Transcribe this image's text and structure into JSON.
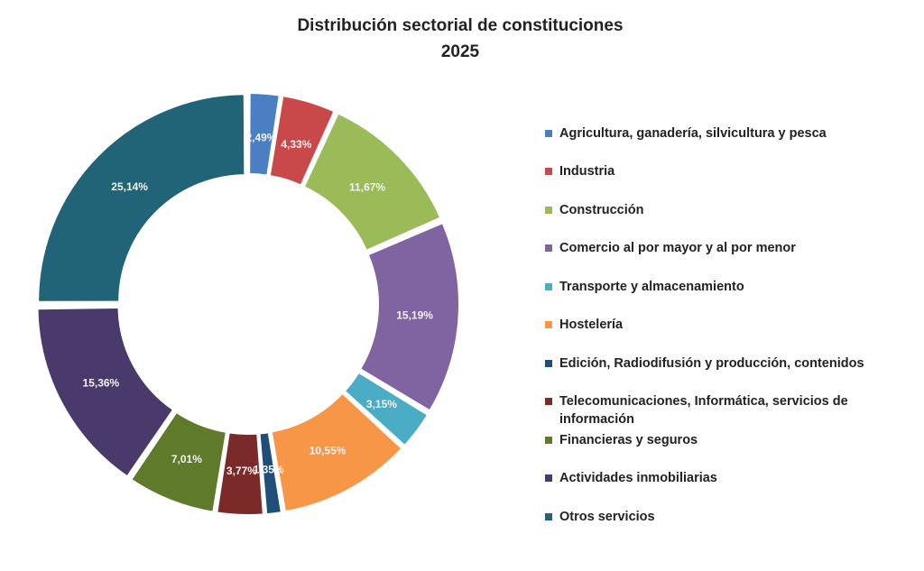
{
  "chart_data": {
    "type": "pie",
    "variant": "donut",
    "title": "Distribución sectorial de constituciones",
    "subtitle": "2025",
    "legend_position": "right",
    "categories": [
      "Agricultura, ganadería, silvicultura y pesca",
      "Industria",
      "Construcción",
      "Comercio al por mayor y al por menor",
      "Transporte y almacenamiento",
      "Hostelería",
      "Edición, Radiodifusión y producción, contenidos",
      "Telecomunicaciones, Informática, servicios de información",
      "Financieras y seguros",
      "Actividades inmobiliarias",
      "Otros servicios"
    ],
    "values": [
      2.49,
      4.33,
      11.67,
      15.19,
      3.15,
      10.55,
      1.35,
      3.77,
      7.01,
      15.36,
      25.14
    ],
    "labels": [
      "2,49%",
      "4,33%",
      "11,67%",
      "15,19%",
      "3,15%",
      "10,55%",
      "1,35%",
      "3,77%",
      "7,01%",
      "15,36%",
      "25,14%"
    ],
    "colors": [
      "#4a7fc4",
      "#c9484a",
      "#9bbb59",
      "#8064a2",
      "#4bacc6",
      "#f79646",
      "#1f4e79",
      "#7b2a2a",
      "#5f7a2a",
      "#4a3a6b",
      "#216478"
    ]
  }
}
